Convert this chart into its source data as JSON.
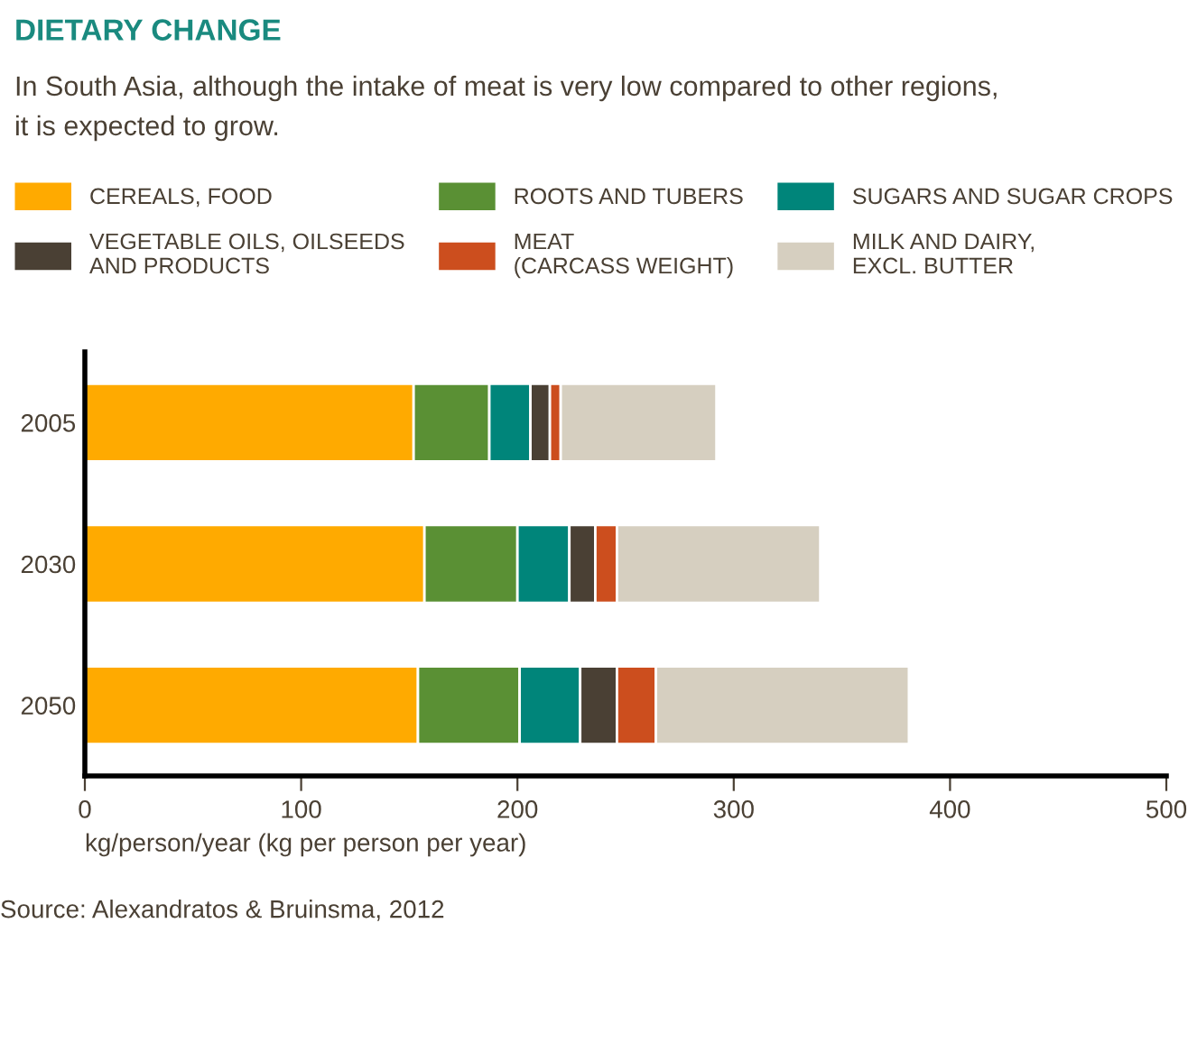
{
  "chart_data": {
    "type": "bar",
    "orientation": "horizontal",
    "stacked": true,
    "title": "DIETARY CHANGE",
    "subtitle": "In South Asia, although the intake of meat is very low compared to other regions,\nit is expected to grow.",
    "xlabel": "kg/person/year (kg per person per year)",
    "categories": [
      "2005",
      "2030",
      "2050"
    ],
    "series": [
      {
        "name": "CEREALS, FOOD",
        "color": "#ffaa00",
        "values": [
          152,
          157,
          154
        ]
      },
      {
        "name": "ROOTS AND TUBERS",
        "color": "#5a9034",
        "values": [
          35,
          43,
          47
        ]
      },
      {
        "name": "SUGARS AND SUGAR CROPS",
        "color": "#00857a",
        "values": [
          19,
          24,
          28
        ]
      },
      {
        "name": "VEGETABLE OILS, OILSEEDS\nAND PRODUCTS",
        "color": "#4a4034",
        "values": [
          9,
          12,
          17
        ]
      },
      {
        "name": "MEAT\n(CARCASS WEIGHT)",
        "color": "#cc4e1e",
        "values": [
          5,
          10,
          18
        ]
      },
      {
        "name": "MILK AND DAIRY,\nEXCL. BUTTER",
        "color": "#d6cfc0",
        "values": [
          72,
          94,
          117
        ]
      }
    ],
    "xlim": [
      0,
      500
    ],
    "xticks": [
      0,
      100,
      200,
      300,
      400,
      500
    ],
    "grid": false,
    "legend": "top",
    "annotations": [
      "Source: Alexandratos & Bruinsma, 2012"
    ]
  }
}
